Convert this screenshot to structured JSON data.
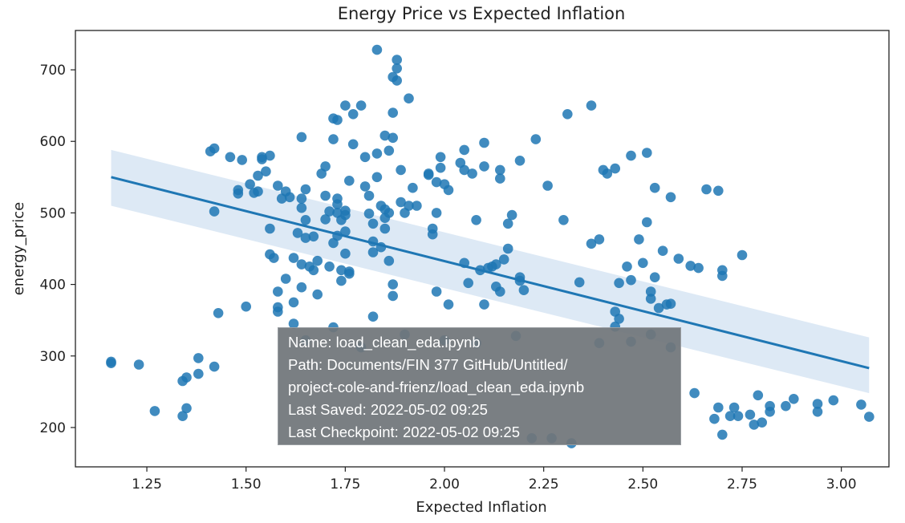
{
  "chart_data": {
    "type": "scatter",
    "title": "Energy Price vs Expected Inflation",
    "xlabel": "Expected Inflation",
    "ylabel": "energy_price",
    "xlim": [
      1.07,
      3.12
    ],
    "ylim": [
      145,
      755
    ],
    "xticks": [
      "1.25",
      "1.50",
      "1.75",
      "2.00",
      "2.25",
      "2.50",
      "2.75",
      "3.00"
    ],
    "yticks": [
      "200",
      "300",
      "400",
      "500",
      "600",
      "700"
    ],
    "colors": {
      "points": "#1f77b4",
      "line": "#1f77b4",
      "band": "#c6dbef"
    },
    "regression": {
      "x": [
        1.16,
        3.07
      ],
      "y": [
        550,
        283
      ],
      "ci_low": [
        510,
        248
      ],
      "ci_high": [
        588,
        326
      ]
    },
    "points": [
      [
        1.16,
        290
      ],
      [
        1.16,
        292
      ],
      [
        1.23,
        288
      ],
      [
        1.27,
        223
      ],
      [
        1.34,
        216
      ],
      [
        1.34,
        265
      ],
      [
        1.35,
        270
      ],
      [
        1.35,
        227
      ],
      [
        1.38,
        297
      ],
      [
        1.38,
        275
      ],
      [
        1.41,
        586
      ],
      [
        1.42,
        590
      ],
      [
        1.42,
        285
      ],
      [
        1.43,
        360
      ],
      [
        1.42,
        502
      ],
      [
        1.46,
        578
      ],
      [
        1.48,
        532
      ],
      [
        1.48,
        527
      ],
      [
        1.49,
        574
      ],
      [
        1.5,
        369
      ],
      [
        1.51,
        540
      ],
      [
        1.52,
        528
      ],
      [
        1.53,
        530
      ],
      [
        1.53,
        552
      ],
      [
        1.54,
        575
      ],
      [
        1.54,
        578
      ],
      [
        1.55,
        558
      ],
      [
        1.56,
        580
      ],
      [
        1.56,
        478
      ],
      [
        1.56,
        442
      ],
      [
        1.57,
        437
      ],
      [
        1.58,
        538
      ],
      [
        1.58,
        390
      ],
      [
        1.58,
        368
      ],
      [
        1.58,
        362
      ],
      [
        1.59,
        520
      ],
      [
        1.6,
        530
      ],
      [
        1.6,
        408
      ],
      [
        1.61,
        522
      ],
      [
        1.62,
        437
      ],
      [
        1.62,
        375
      ],
      [
        1.62,
        345
      ],
      [
        1.63,
        472
      ],
      [
        1.64,
        507
      ],
      [
        1.64,
        520
      ],
      [
        1.64,
        606
      ],
      [
        1.64,
        396
      ],
      [
        1.64,
        428
      ],
      [
        1.65,
        465
      ],
      [
        1.65,
        533
      ],
      [
        1.65,
        490
      ],
      [
        1.66,
        425
      ],
      [
        1.67,
        420
      ],
      [
        1.67,
        467
      ],
      [
        1.68,
        433
      ],
      [
        1.68,
        386
      ],
      [
        1.69,
        555
      ],
      [
        1.7,
        565
      ],
      [
        1.7,
        524
      ],
      [
        1.7,
        491
      ],
      [
        1.71,
        502
      ],
      [
        1.71,
        425
      ],
      [
        1.72,
        603
      ],
      [
        1.72,
        632
      ],
      [
        1.72,
        458
      ],
      [
        1.73,
        468
      ],
      [
        1.73,
        500
      ],
      [
        1.73,
        512
      ],
      [
        1.73,
        520
      ],
      [
        1.73,
        630
      ],
      [
        1.74,
        405
      ],
      [
        1.74,
        420
      ],
      [
        1.74,
        490
      ],
      [
        1.75,
        650
      ],
      [
        1.75,
        503
      ],
      [
        1.75,
        497
      ],
      [
        1.75,
        474
      ],
      [
        1.75,
        443
      ],
      [
        1.76,
        415
      ],
      [
        1.76,
        418
      ],
      [
        1.76,
        545
      ],
      [
        1.77,
        596
      ],
      [
        1.77,
        638
      ],
      [
        1.79,
        650
      ],
      [
        1.8,
        578
      ],
      [
        1.8,
        537
      ],
      [
        1.81,
        499
      ],
      [
        1.81,
        524
      ],
      [
        1.82,
        445
      ],
      [
        1.82,
        460
      ],
      [
        1.82,
        355
      ],
      [
        1.82,
        485
      ],
      [
        1.83,
        550
      ],
      [
        1.83,
        583
      ],
      [
        1.83,
        728
      ],
      [
        1.84,
        452
      ],
      [
        1.84,
        510
      ],
      [
        1.85,
        505
      ],
      [
        1.85,
        608
      ],
      [
        1.85,
        478
      ],
      [
        1.85,
        493
      ],
      [
        1.86,
        500
      ],
      [
        1.86,
        433
      ],
      [
        1.86,
        587
      ],
      [
        1.87,
        384
      ],
      [
        1.87,
        400
      ],
      [
        1.87,
        605
      ],
      [
        1.87,
        690
      ],
      [
        1.87,
        640
      ],
      [
        1.88,
        685
      ],
      [
        1.88,
        714
      ],
      [
        1.88,
        702
      ],
      [
        1.89,
        560
      ],
      [
        1.89,
        515
      ],
      [
        1.9,
        500
      ],
      [
        1.91,
        510
      ],
      [
        1.91,
        660
      ],
      [
        1.92,
        535
      ],
      [
        1.93,
        510
      ],
      [
        1.96,
        553
      ],
      [
        1.96,
        555
      ],
      [
        1.97,
        470
      ],
      [
        1.97,
        478
      ],
      [
        1.98,
        390
      ],
      [
        1.98,
        500
      ],
      [
        1.98,
        543
      ],
      [
        1.99,
        563
      ],
      [
        1.99,
        578
      ],
      [
        2.0,
        540
      ],
      [
        2.01,
        532
      ],
      [
        2.01,
        372
      ],
      [
        2.04,
        570
      ],
      [
        2.05,
        430
      ],
      [
        2.05,
        588
      ],
      [
        2.05,
        560
      ],
      [
        2.06,
        402
      ],
      [
        2.07,
        555
      ],
      [
        2.08,
        490
      ],
      [
        2.09,
        420
      ],
      [
        2.1,
        565
      ],
      [
        2.1,
        372
      ],
      [
        2.1,
        598
      ],
      [
        2.11,
        423
      ],
      [
        2.12,
        425
      ],
      [
        2.13,
        397
      ],
      [
        2.13,
        428
      ],
      [
        2.14,
        390
      ],
      [
        2.14,
        548
      ],
      [
        2.14,
        560
      ],
      [
        2.15,
        435
      ],
      [
        2.16,
        485
      ],
      [
        2.16,
        450
      ],
      [
        2.17,
        497
      ],
      [
        2.19,
        405
      ],
      [
        2.19,
        410
      ],
      [
        2.19,
        573
      ],
      [
        2.2,
        392
      ],
      [
        2.23,
        603
      ],
      [
        2.26,
        538
      ],
      [
        2.3,
        490
      ],
      [
        2.31,
        638
      ],
      [
        2.34,
        403
      ],
      [
        2.37,
        650
      ],
      [
        2.37,
        457
      ],
      [
        2.39,
        463
      ],
      [
        2.4,
        560
      ],
      [
        2.41,
        555
      ],
      [
        2.43,
        562
      ],
      [
        2.43,
        362
      ],
      [
        2.44,
        352
      ],
      [
        2.44,
        402
      ],
      [
        2.46,
        425
      ],
      [
        2.47,
        406
      ],
      [
        2.47,
        580
      ],
      [
        2.49,
        463
      ],
      [
        2.5,
        430
      ],
      [
        2.51,
        584
      ],
      [
        2.51,
        487
      ],
      [
        2.52,
        380
      ],
      [
        2.52,
        390
      ],
      [
        2.53,
        410
      ],
      [
        2.53,
        535
      ],
      [
        2.54,
        367
      ],
      [
        2.55,
        447
      ],
      [
        2.56,
        372
      ],
      [
        2.57,
        373
      ],
      [
        2.57,
        522
      ],
      [
        2.59,
        436
      ],
      [
        2.62,
        426
      ],
      [
        2.64,
        423
      ],
      [
        2.66,
        533
      ],
      [
        2.68,
        212
      ],
      [
        2.69,
        228
      ],
      [
        2.69,
        531
      ],
      [
        2.7,
        190
      ],
      [
        2.7,
        420
      ],
      [
        2.7,
        412
      ],
      [
        2.72,
        216
      ],
      [
        2.73,
        228
      ],
      [
        2.74,
        216
      ],
      [
        2.75,
        441
      ],
      [
        2.77,
        218
      ],
      [
        2.78,
        204
      ],
      [
        2.79,
        245
      ],
      [
        2.8,
        207
      ],
      [
        2.82,
        222
      ],
      [
        2.82,
        230
      ],
      [
        2.86,
        230
      ],
      [
        2.88,
        240
      ],
      [
        2.94,
        233
      ],
      [
        2.94,
        222
      ],
      [
        2.98,
        238
      ],
      [
        3.05,
        232
      ],
      [
        3.07,
        215
      ],
      [
        2.43,
        341
      ],
      [
        2.27,
        185
      ],
      [
        2.32,
        178
      ],
      [
        2.22,
        185
      ],
      [
        2.63,
        248
      ],
      [
        2.52,
        330
      ],
      [
        1.9,
        330
      ],
      [
        2.0,
        322
      ],
      [
        2.08,
        318
      ],
      [
        2.18,
        328
      ],
      [
        2.39,
        318
      ],
      [
        1.65,
        322
      ],
      [
        1.72,
        340
      ],
      [
        2.57,
        312
      ],
      [
        2.47,
        320
      ],
      [
        1.79,
        312
      ]
    ]
  },
  "tooltip": {
    "name": "Name: load_clean_eda.ipynb",
    "path": "Path: Documents/FIN 377 GitHub/Untitled/",
    "path_cont": "project-cole-and-frienz/load_clean_eda.ipynb",
    "last_saved": "Last Saved: 2022-05-02 09:25",
    "last_checkpoint": "Last Checkpoint: 2022-05-02 09:25"
  }
}
